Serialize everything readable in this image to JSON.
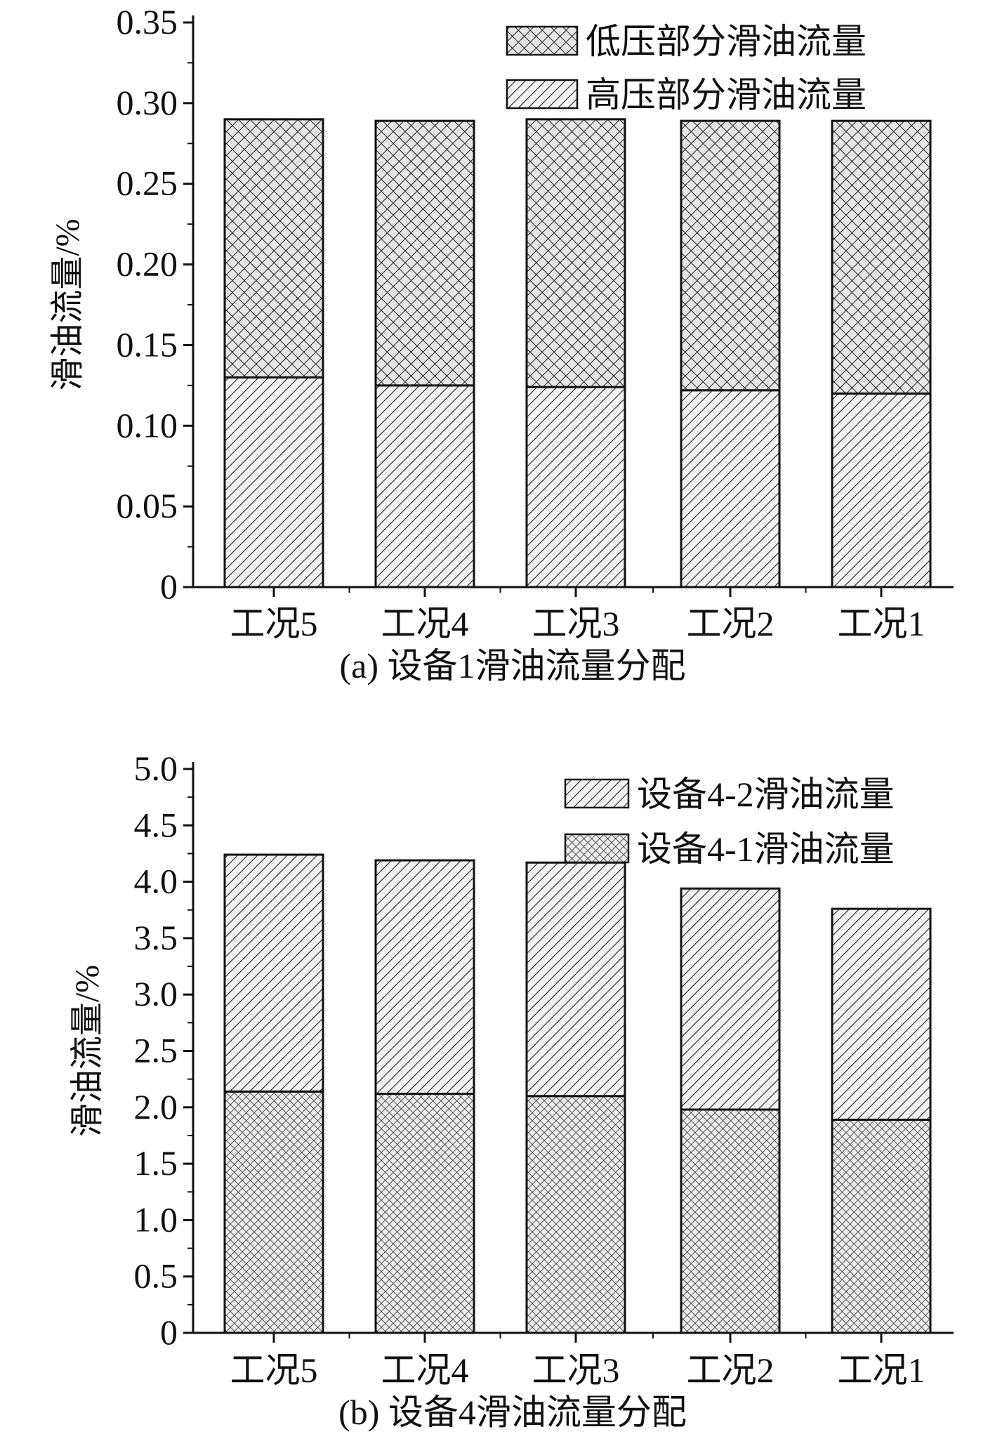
{
  "chart_data": [
    {
      "type": "bar",
      "stacked": true,
      "caption": "(a) 设备1滑油流量分配",
      "ylabel": "滑油流量/%",
      "xlabel": "",
      "ylim": [
        0,
        0.35
      ],
      "yticks": [
        "0",
        "0.05",
        "0.10",
        "0.15",
        "0.20",
        "0.25",
        "0.30",
        "0.35"
      ],
      "categories": [
        "工况5",
        "工况4",
        "工况3",
        "工况2",
        "工况1"
      ],
      "series": [
        {
          "name": "高压部分滑油流量",
          "pattern": "hatch-diagonal",
          "values": [
            0.13,
            0.125,
            0.124,
            0.122,
            0.12
          ]
        },
        {
          "name": "低压部分滑油流量",
          "pattern": "hatch-crosshatch",
          "values": [
            0.16,
            0.164,
            0.166,
            0.167,
            0.169
          ]
        }
      ],
      "legend_order": [
        1,
        0
      ],
      "legend_position": "top-right",
      "grid": false
    },
    {
      "type": "bar",
      "stacked": true,
      "caption": "(b) 设备4滑油流量分配",
      "ylabel": "滑油流量/%",
      "xlabel": "",
      "ylim": [
        0,
        5.0
      ],
      "yticks": [
        "0",
        "0.5",
        "1.0",
        "1.5",
        "2.0",
        "2.5",
        "3.0",
        "3.5",
        "4.0",
        "4.5",
        "5.0"
      ],
      "categories": [
        "工况5",
        "工况4",
        "工况3",
        "工况2",
        "工况1"
      ],
      "series": [
        {
          "name": "设备4-1滑油流量",
          "pattern": "hatch-crosshatch-fine",
          "values": [
            2.14,
            2.12,
            2.1,
            1.98,
            1.89
          ]
        },
        {
          "name": "设备4-2滑油流量",
          "pattern": "hatch-diagonal",
          "values": [
            2.1,
            2.07,
            2.07,
            1.96,
            1.87
          ]
        }
      ],
      "legend_order": [
        1,
        0
      ],
      "legend_position": "top-right",
      "grid": false
    }
  ],
  "colors": {
    "ink": "#111111",
    "background": "#ffffff"
  }
}
